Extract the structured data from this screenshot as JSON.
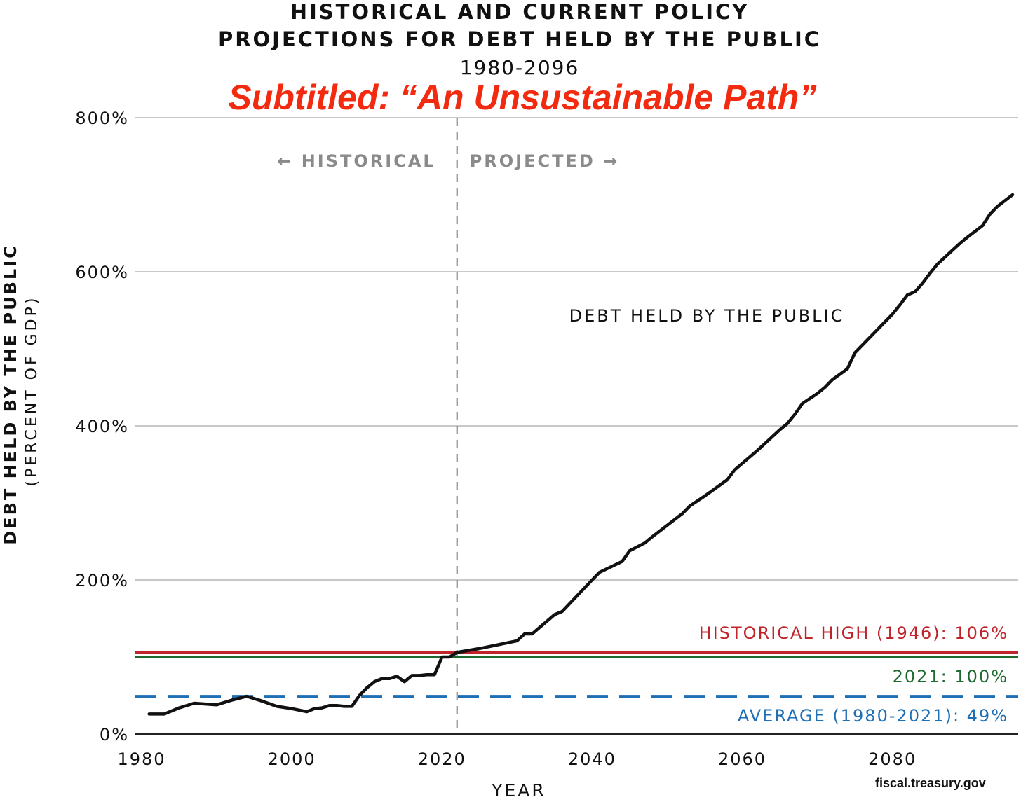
{
  "chart_data": {
    "type": "line",
    "title_line1": "HISTORICAL AND CURRENT POLICY",
    "title_line2": "PROJECTIONS FOR DEBT HELD BY THE PUBLIC",
    "year_range": "1980-2096",
    "subtitle": "Subtitled: “An Unsustainable Path”",
    "xlabel": "YEAR",
    "ylabel": "DEBT HELD BY THE PUBLIC",
    "ylabel_sub": "(PERCENT OF GDP)",
    "xlim": [
      1980,
      2096
    ],
    "ylim": [
      0,
      800
    ],
    "xticks": [
      1980,
      2000,
      2020,
      2040,
      2060,
      2080
    ],
    "yticks": [
      0,
      200,
      400,
      600,
      800
    ],
    "ytick_labels": [
      "0%",
      "200%",
      "400%",
      "600%",
      "800%"
    ],
    "grid": "horizontal",
    "divider_year": 2022,
    "region_left_label": "← HISTORICAL",
    "region_right_label": "PROJECTED →",
    "series": [
      {
        "name": "DEBT HELD BY THE PUBLIC",
        "color": "#111111",
        "x": [
          1981,
          1982,
          1983,
          1985,
          1987,
          1990,
          1992,
          1994,
          1996,
          1998,
          2000,
          2002,
          2003,
          2004,
          2005,
          2006,
          2007,
          2008,
          2009,
          2010,
          2011,
          2012,
          2013,
          2014,
          2015,
          2016,
          2017,
          2018,
          2019,
          2020,
          2021,
          2022,
          2025,
          2030,
          2031,
          2032,
          2035,
          2036,
          2040,
          2041,
          2044,
          2045,
          2047,
          2048,
          2052,
          2053,
          2055,
          2058,
          2059,
          2062,
          2065,
          2066,
          2067,
          2068,
          2070,
          2071,
          2072,
          2074,
          2075,
          2076,
          2080,
          2081,
          2082,
          2083,
          2084,
          2085,
          2086,
          2088,
          2089,
          2090,
          2092,
          2093,
          2094,
          2096
        ],
        "y": [
          26,
          26,
          26,
          34,
          40,
          38,
          44,
          49,
          43,
          36,
          33,
          29,
          33,
          34,
          37,
          37,
          36,
          36,
          50,
          60,
          68,
          72,
          72,
          75,
          68,
          76,
          76,
          77,
          77,
          100,
          100,
          106,
          111,
          121,
          130,
          130,
          155,
          159,
          200,
          210,
          224,
          238,
          248,
          256,
          286,
          296,
          309,
          330,
          343,
          368,
          395,
          403,
          415,
          429,
          442,
          450,
          460,
          474,
          495,
          505,
          545,
          557,
          570,
          574,
          585,
          598,
          610,
          628,
          637,
          645,
          660,
          675,
          685,
          700
        ]
      }
    ],
    "reference_lines": [
      {
        "name": "HISTORICAL HIGH (1946): 106%",
        "value": 106,
        "color": "#c0242b",
        "style": "solid"
      },
      {
        "name": "2021: 100%",
        "value": 100,
        "color": "#1d6a2f",
        "style": "solid"
      },
      {
        "name": "AVERAGE (1980-2021): 49%",
        "value": 49,
        "color": "#1f6fb5",
        "style": "dashed"
      }
    ],
    "source": "fiscal.treasury.gov"
  }
}
